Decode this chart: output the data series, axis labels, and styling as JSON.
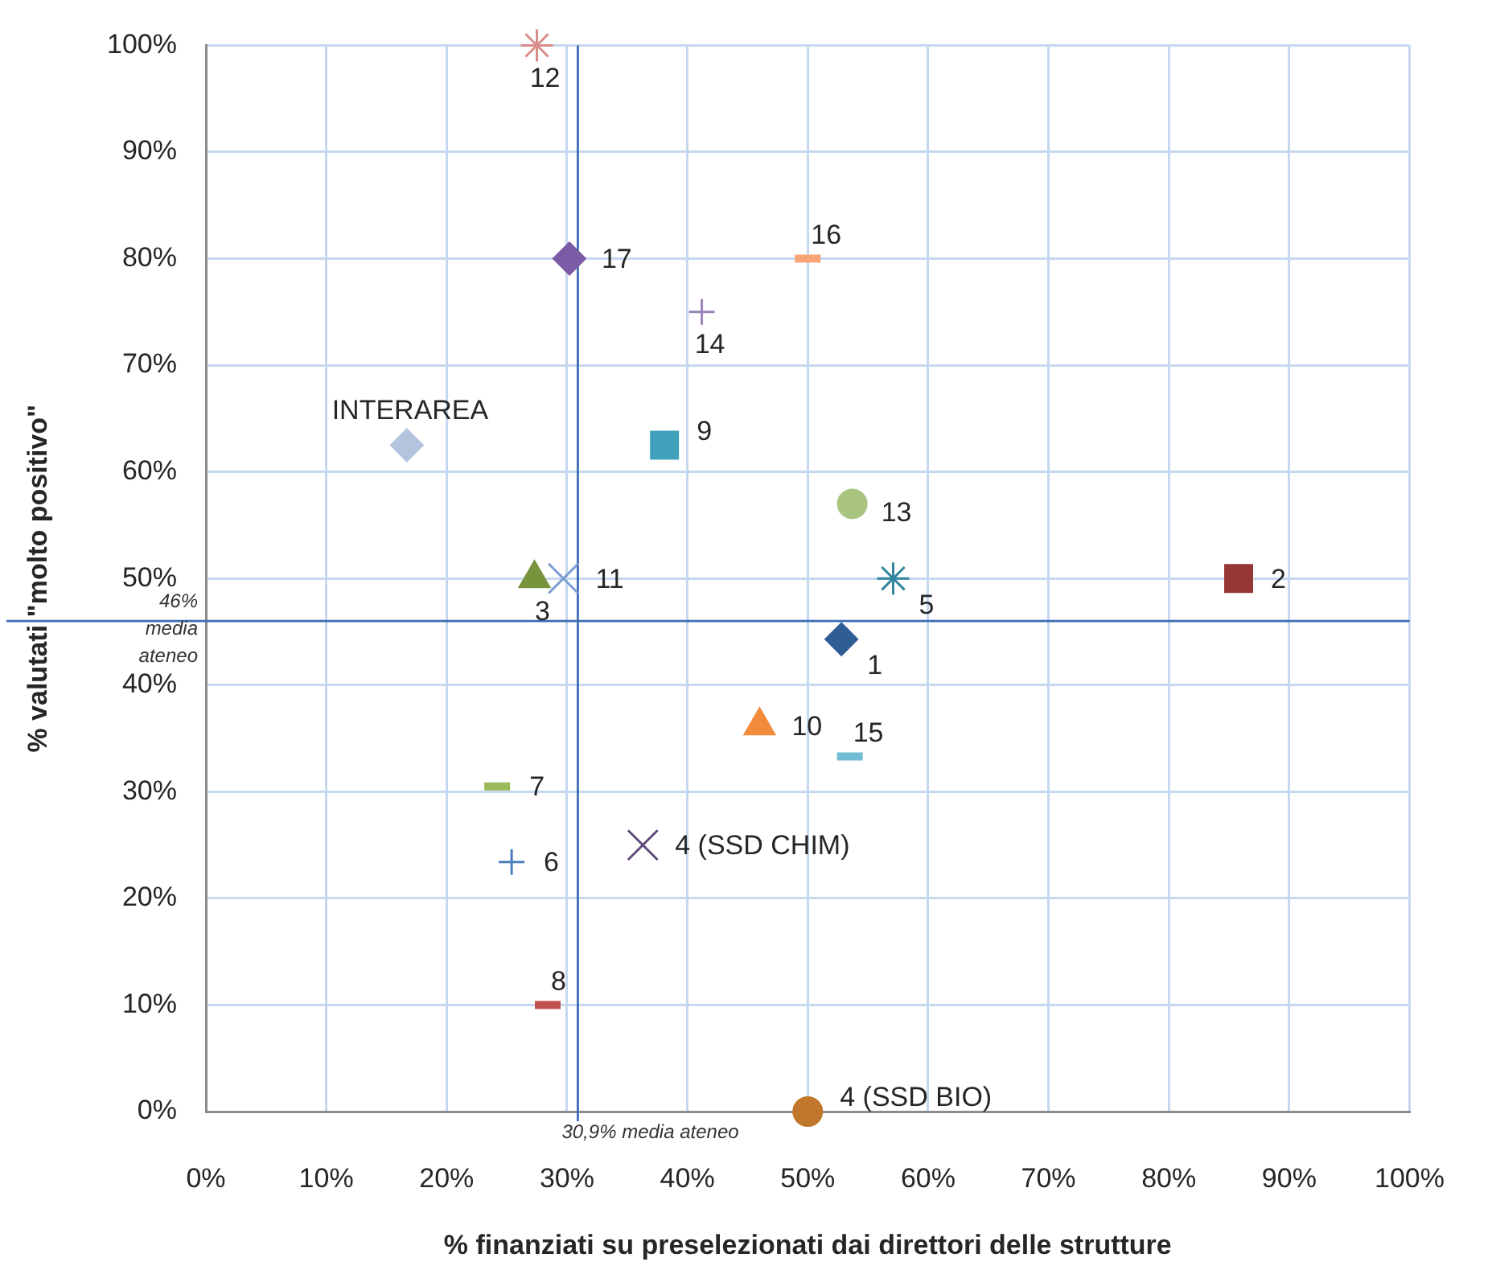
{
  "chart_data": {
    "type": "scatter",
    "xlabel": "% finanziati su preselezionati dai direttori delle strutture",
    "ylabel": "% valutati \"molto positivo\"",
    "xlim": [
      0,
      100
    ],
    "ylim": [
      0,
      100
    ],
    "xticks": [
      {
        "value": 0,
        "label": "0%"
      },
      {
        "value": 10,
        "label": "10%"
      },
      {
        "value": 20,
        "label": "20%"
      },
      {
        "value": 30,
        "label": "30%"
      },
      {
        "value": 40,
        "label": "40%"
      },
      {
        "value": 50,
        "label": "50%"
      },
      {
        "value": 60,
        "label": "60%"
      },
      {
        "value": 70,
        "label": "70%"
      },
      {
        "value": 80,
        "label": "80%"
      },
      {
        "value": 90,
        "label": "90%"
      },
      {
        "value": 100,
        "label": "100%"
      }
    ],
    "yticks": [
      {
        "value": 0,
        "label": "0%"
      },
      {
        "value": 10,
        "label": "10%"
      },
      {
        "value": 20,
        "label": "20%"
      },
      {
        "value": 30,
        "label": "30%"
      },
      {
        "value": 40,
        "label": "40%"
      },
      {
        "value": 50,
        "label": "50%"
      },
      {
        "value": 60,
        "label": "60%"
      },
      {
        "value": 70,
        "label": "70%"
      },
      {
        "value": 80,
        "label": "80%"
      },
      {
        "value": 90,
        "label": "90%"
      },
      {
        "value": 100,
        "label": "100%"
      }
    ],
    "grid": true,
    "ref_lines": [
      {
        "axis": "x",
        "value": 30.9,
        "label": "30,9% media ateneo",
        "color": "#3d6db5"
      },
      {
        "axis": "y",
        "value": 46,
        "label": "46% media ateneo",
        "color": "#3d6db5"
      }
    ],
    "series": [
      {
        "name": "1",
        "color": "#2f5e97",
        "marker": "diamond",
        "x": [
          52.8
        ],
        "values": [
          44.3
        ]
      },
      {
        "name": "2",
        "color": "#953735",
        "marker": "square",
        "x": [
          85.8
        ],
        "values": [
          50
        ]
      },
      {
        "name": "3",
        "color": "#77933c",
        "marker": "triangle",
        "x": [
          27.3
        ],
        "values": [
          50
        ]
      },
      {
        "name": "4 (SSD CHIM)",
        "color": "#604a7b",
        "marker": "x",
        "x": [
          36.3
        ],
        "values": [
          25
        ]
      },
      {
        "name": "4 (SSD BIO)",
        "color": "#c0772c",
        "marker": "circle",
        "x": [
          50
        ],
        "values": [
          0
        ]
      },
      {
        "name": "5",
        "color": "#31859c",
        "marker": "cross",
        "x": [
          57.1
        ],
        "values": [
          50
        ]
      },
      {
        "name": "6",
        "color": "#4a7ebb",
        "marker": "plus",
        "x": [
          25.4
        ],
        "values": [
          23.4
        ]
      },
      {
        "name": "7",
        "color": "#9bbb59",
        "x": [
          24.2
        ],
        "values": [
          30.5
        ]
      },
      {
        "name": "8",
        "color": "#c0504d",
        "x": [
          28.4
        ],
        "values": [
          10
        ]
      },
      {
        "name": "9",
        "color": "#3fa2ba",
        "marker": "square",
        "x": [
          38.1
        ],
        "values": [
          62.5
        ]
      },
      {
        "name": "10",
        "color": "#f38b3c",
        "marker": "triangle",
        "x": [
          46
        ],
        "values": [
          36.2
        ]
      },
      {
        "name": "11",
        "color": "#7f9fd2",
        "marker": "x",
        "x": [
          29.7
        ],
        "values": [
          50
        ]
      },
      {
        "name": "12",
        "color": "#d98b8b",
        "marker": "cross",
        "x": [
          27.5
        ],
        "values": [
          100
        ]
      },
      {
        "name": "13",
        "color": "#a9c47f",
        "marker": "circle",
        "x": [
          53.7
        ],
        "values": [
          57
        ]
      },
      {
        "name": "14",
        "color": "#9a84b8",
        "marker": "plus",
        "x": [
          41.2
        ],
        "values": [
          75
        ]
      },
      {
        "name": "15",
        "color": "#72bcd4",
        "x": [
          53.5
        ],
        "values": [
          33.3
        ]
      },
      {
        "name": "16",
        "color": "#f7a477",
        "x": [
          50
        ],
        "values": [
          80
        ]
      },
      {
        "name": "17",
        "color": "#7b5ba5",
        "marker": "diamond",
        "x": [
          30.2
        ],
        "values": [
          80
        ]
      },
      {
        "name": "INTERAREA",
        "color": "#b4c3de",
        "marker": "diamond",
        "x": [
          16.7
        ],
        "values": [
          62.5
        ]
      }
    ]
  }
}
